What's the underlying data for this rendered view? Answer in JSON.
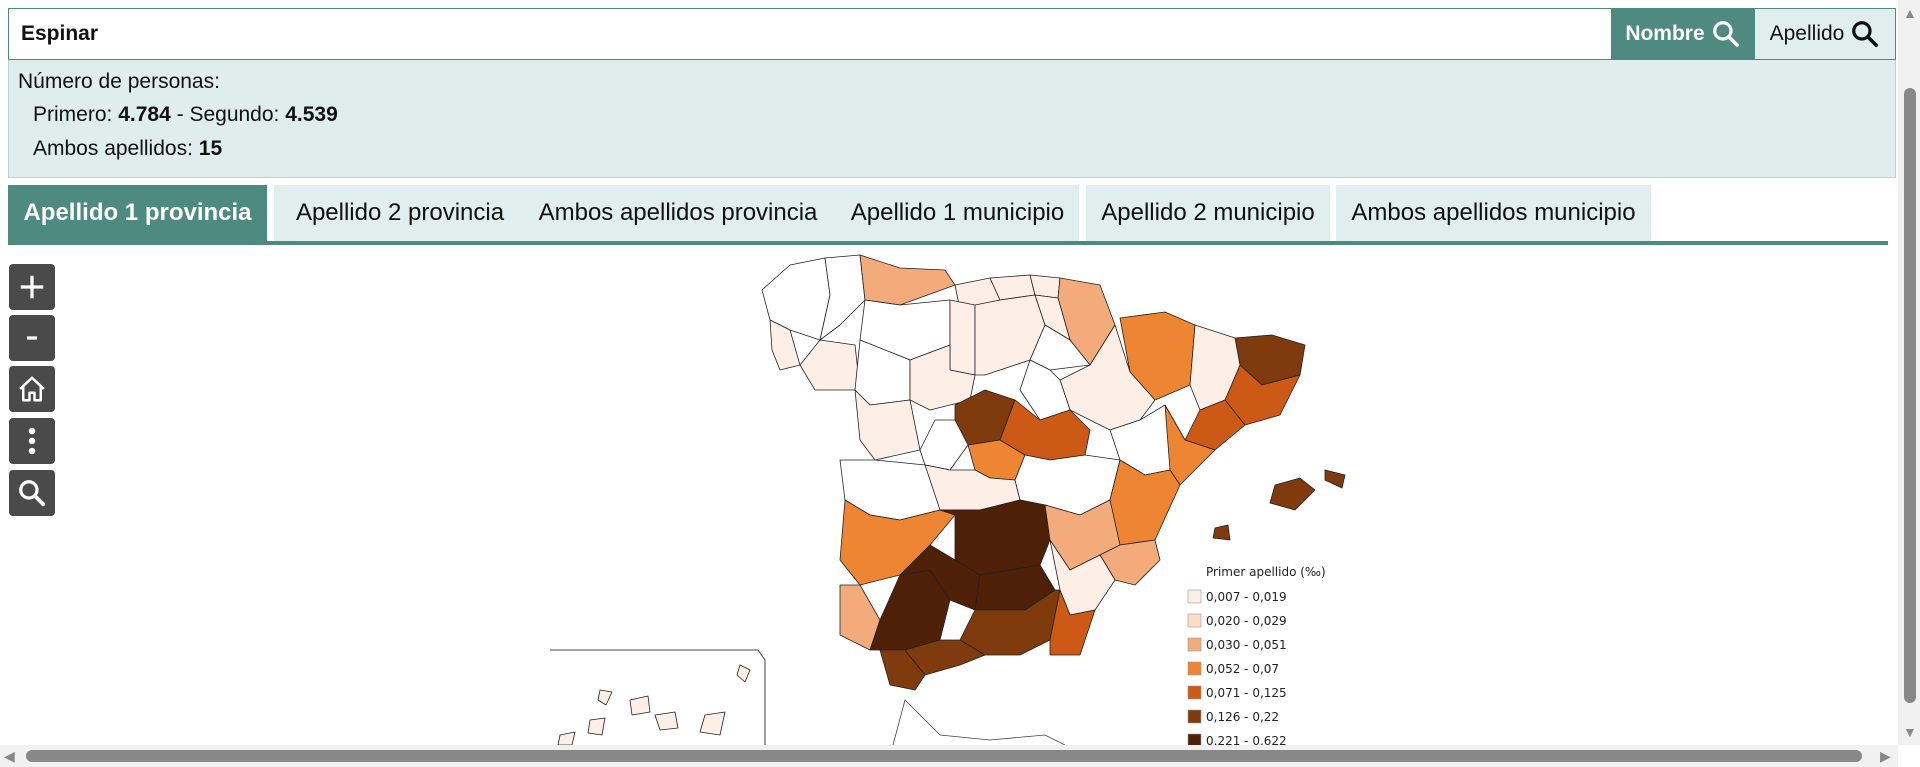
{
  "search": {
    "value": "Espinar",
    "nombre_label": "Nombre",
    "apellido_label": "Apellido"
  },
  "info": {
    "title": "Número de personas:",
    "primero_label": "Primero:",
    "primero_value": "4.784",
    "separator": "-",
    "segundo_label": "Segundo:",
    "segundo_value": "4.539",
    "ambos_label": "Ambos apellidos:",
    "ambos_value": "15"
  },
  "tabs": [
    {
      "label": "Apellido 1 provincia",
      "active": true
    },
    {
      "label": "Apellido 2 provincia",
      "active": false
    },
    {
      "label": "Ambos apellidos provincia",
      "active": false
    },
    {
      "label": "Apellido 1 municipio",
      "active": false
    },
    {
      "label": "Apellido 2 municipio",
      "active": false
    },
    {
      "label": "Ambos apellidos municipio",
      "active": false
    }
  ],
  "tools": [
    "zoom-in-icon",
    "zoom-out-icon",
    "home-icon",
    "more-vertical-icon",
    "search-icon"
  ],
  "colors": {
    "accent": "#4e8a7f",
    "tab_inactive": "#e0efed",
    "panel": "#dfeeec",
    "tool": "#4a4a4a"
  },
  "legend": {
    "title": "Primer apellido (‰)",
    "classes": [
      {
        "label": "0,007 - 0,019",
        "color": "#fdeee6"
      },
      {
        "label": "0,020 - 0,029",
        "color": "#fcdcc9"
      },
      {
        "label": "0,030 - 0,051",
        "color": "#f3ab7c"
      },
      {
        "label": "0,052 - 0,07",
        "color": "#ee8533"
      },
      {
        "label": "0,071 - 0,125",
        "color": "#cc5a16"
      },
      {
        "label": "0,126 - 0,22",
        "color": "#7f3a0e"
      },
      {
        "label": "0,221 - 0,622",
        "color": "#4e2008"
      }
    ]
  },
  "map_regions": [
    {
      "name": "A Coruña",
      "cls": -1
    },
    {
      "name": "Lugo",
      "cls": -1
    },
    {
      "name": "Asturias",
      "cls": 2
    },
    {
      "name": "Cantabria",
      "cls": 0
    },
    {
      "name": "Vizcaya",
      "cls": 0
    },
    {
      "name": "Guipúzcoa",
      "cls": 0
    },
    {
      "name": "Navarra",
      "cls": 2
    },
    {
      "name": "Huesca",
      "cls": 3
    },
    {
      "name": "Girona",
      "cls": 5
    },
    {
      "name": "Barcelona",
      "cls": 4
    },
    {
      "name": "Lleida",
      "cls": 0
    },
    {
      "name": "Tarragona",
      "cls": 4
    },
    {
      "name": "Pontevedra",
      "cls": 0
    },
    {
      "name": "Ourense",
      "cls": 0
    },
    {
      "name": "León",
      "cls": -1
    },
    {
      "name": "Palencia",
      "cls": 0
    },
    {
      "name": "Burgos",
      "cls": 0
    },
    {
      "name": "Álava",
      "cls": 0
    },
    {
      "name": "La Rioja",
      "cls": -1
    },
    {
      "name": "Zaragoza",
      "cls": 0
    },
    {
      "name": "Zamora",
      "cls": -1
    },
    {
      "name": "Valladolid",
      "cls": 0
    },
    {
      "name": "Soria",
      "cls": -1
    },
    {
      "name": "Segovia",
      "cls": 5
    },
    {
      "name": "Salamanca",
      "cls": 0
    },
    {
      "name": "Ávila",
      "cls": -1
    },
    {
      "name": "Madrid",
      "cls": 3
    },
    {
      "name": "Guadalajara",
      "cls": 4
    },
    {
      "name": "Teruel",
      "cls": -1
    },
    {
      "name": "Castellón",
      "cls": 3
    },
    {
      "name": "Cáceres",
      "cls": -1
    },
    {
      "name": "Toledo",
      "cls": 0
    },
    {
      "name": "Cuenca",
      "cls": -1
    },
    {
      "name": "Valencia",
      "cls": 3
    },
    {
      "name": "Badajoz",
      "cls": 3
    },
    {
      "name": "Ciudad Real",
      "cls": 6
    },
    {
      "name": "Albacete",
      "cls": 2
    },
    {
      "name": "Alicante",
      "cls": 2
    },
    {
      "name": "Murcia",
      "cls": 0
    },
    {
      "name": "Huelva",
      "cls": 2
    },
    {
      "name": "Sevilla",
      "cls": 6
    },
    {
      "name": "Córdoba",
      "cls": 6
    },
    {
      "name": "Jaén",
      "cls": 6
    },
    {
      "name": "Granada",
      "cls": 5
    },
    {
      "name": "Almería",
      "cls": 4
    },
    {
      "name": "Cádiz",
      "cls": 5
    },
    {
      "name": "Málaga",
      "cls": 5
    },
    {
      "name": "Mallorca",
      "cls": 5
    },
    {
      "name": "Menorca",
      "cls": 5
    },
    {
      "name": "Ibiza",
      "cls": 5
    },
    {
      "name": "Canarias",
      "cls": 0
    }
  ]
}
